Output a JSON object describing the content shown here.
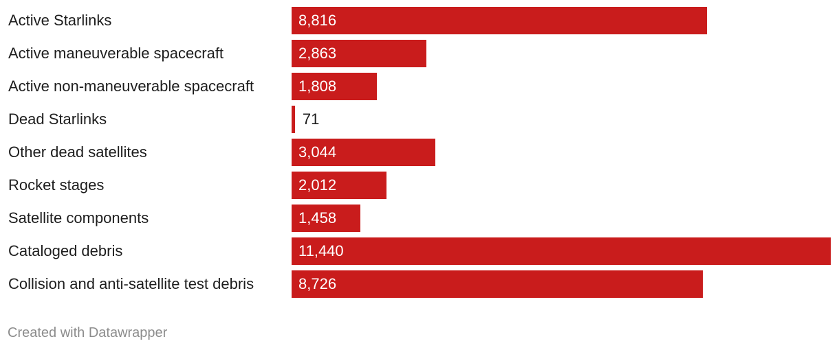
{
  "chart_data": {
    "type": "bar",
    "orientation": "horizontal",
    "categories": [
      "Active Starlinks",
      "Active maneuverable spacecraft",
      "Active non-maneuverable spacecraft",
      "Dead Starlinks",
      "Other dead satellites",
      "Rocket stages",
      "Satellite components",
      "Cataloged debris",
      "Collision and anti-satellite test debris"
    ],
    "values": [
      8816,
      2863,
      1808,
      71,
      3044,
      2012,
      1458,
      11440,
      8726
    ],
    "value_labels": [
      "8,816",
      "2,863",
      "1,808",
      "71",
      "3,044",
      "2,012",
      "1,458",
      "11,440",
      "8,726"
    ],
    "xlim": [
      0,
      11440
    ],
    "grid": false,
    "bar_color": "#c91c1c",
    "label_color_inside": "#ffffff",
    "label_color_outside": "#1d1d1d"
  },
  "footer": {
    "credit": "Created with Datawrapper"
  }
}
